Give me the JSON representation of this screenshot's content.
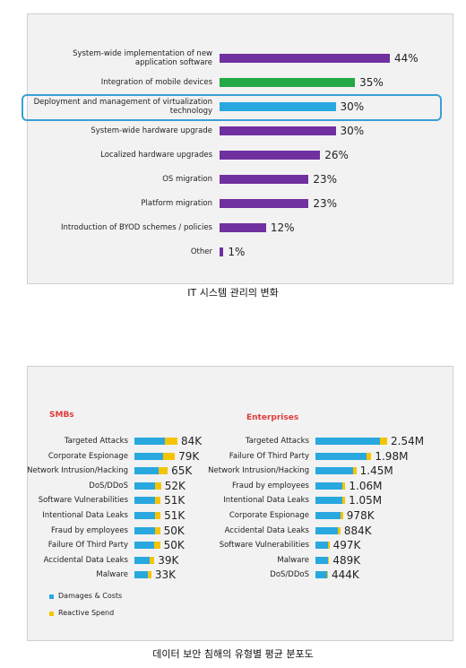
{
  "chart_data": [
    {
      "type": "hbar",
      "categories": [
        "System-wide implementation of new application software",
        "Integration of mobile devices",
        "Deployment and management of virtualization technology",
        "System-wide hardware upgrade",
        "Localized hardware upgrades",
        "OS migration",
        "Platform migration",
        "Introduction of BYOD schemes / policies",
        "Other"
      ],
      "values": [
        44,
        35,
        30,
        30,
        26,
        23,
        23,
        12,
        1
      ],
      "value_labels": [
        "44%",
        "35%",
        "30%",
        "30%",
        "26%",
        "23%",
        "23%",
        "12%",
        "1%"
      ],
      "colors": [
        "#7030a0",
        "#22a844",
        "#29a8e0",
        "#7030a0",
        "#7030a0",
        "#7030a0",
        "#7030a0",
        "#7030a0",
        "#7030a0"
      ],
      "highlight_index": 2
    },
    {
      "type": "stacked-hbar",
      "title": "SMBs",
      "categories": [
        "Targeted Attacks",
        "Corporate Espionage",
        "Network Intrusion/Hacking",
        "DoS/DDoS",
        "Software Vulnerabilities",
        "Intentional Data Leaks",
        "Fraud by employees",
        "Failure Of Third Party",
        "Accidental Data Leaks",
        "Malware"
      ],
      "series": [
        {
          "name": "Damages & Costs",
          "color": "#29a8e0",
          "values": [
            60000,
            56000,
            48000,
            41000,
            41000,
            40000,
            40000,
            38000,
            30000,
            27000
          ]
        },
        {
          "name": "Reactive Spend",
          "color": "#f5c400",
          "values": [
            24000,
            23000,
            17000,
            11000,
            10000,
            11000,
            10000,
            12000,
            9000,
            6000
          ]
        }
      ],
      "totals": [
        84000,
        79000,
        65000,
        52000,
        51000,
        51000,
        50000,
        50000,
        39000,
        33000
      ],
      "total_labels": [
        "84K",
        "79K",
        "65K",
        "52K",
        "51K",
        "51K",
        "50K",
        "50K",
        "39K",
        "33K"
      ]
    },
    {
      "type": "stacked-hbar",
      "title": "Enterprises",
      "categories": [
        "Targeted Attacks",
        "Failure Of Third Party",
        "Network Intrusion/Hacking",
        "Fraud by employees",
        "Intentional Data Leaks",
        "Corporate Espionage",
        "Accidental Data Leaks",
        "Software Vulnerabilities",
        "Malware",
        "DoS/DDoS"
      ],
      "series": [
        {
          "color": "#29a8e0",
          "values": [
            2300000,
            1800000,
            1330000,
            960000,
            950000,
            880000,
            800000,
            440000,
            440000,
            400000
          ]
        },
        {
          "color": "#f5c400",
          "values": [
            240000,
            180000,
            120000,
            100000,
            100000,
            98000,
            84000,
            57000,
            49000,
            44000
          ]
        }
      ],
      "totals": [
        2540000,
        1980000,
        1450000,
        1060000,
        1050000,
        978000,
        884000,
        497000,
        489000,
        444000
      ],
      "total_labels": [
        "2.54M",
        "1.98M",
        "1.45M",
        "1.06M",
        "1.05M",
        "978K",
        "884K",
        "497K",
        "489K",
        "444K"
      ]
    }
  ],
  "captions": [
    "IT 시스템 관리의 변화",
    "데이터 보안 침해의 유형별 평균 분포도"
  ]
}
